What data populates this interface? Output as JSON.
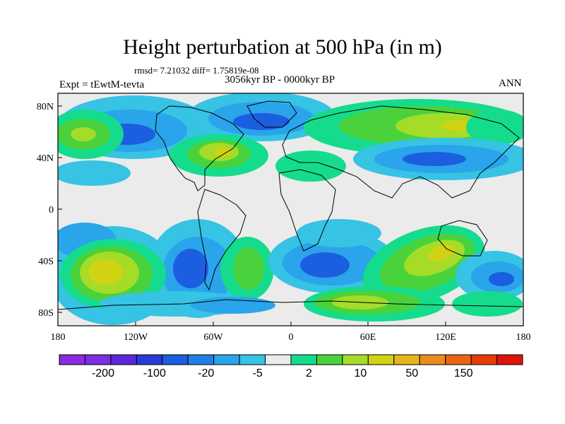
{
  "title": "Height perturbation at 500 hPa (in m)",
  "stats": "rmsd= 7.21032  diff= 1.75819e-08",
  "experiment": "Expt = tEwtM-tevta",
  "period": "3056kyr BP - 0000kyr BP",
  "season": "ANN",
  "lat_ticks": [
    "80N",
    "40N",
    "0",
    "40S",
    "80S"
  ],
  "lon_ticks": [
    "180",
    "120W",
    "60W",
    "0",
    "60E",
    "120E",
    "180"
  ],
  "colorbar": {
    "colors": [
      "#8a2be2",
      "#7a2fe0",
      "#5a28d8",
      "#2a3ad6",
      "#1c5ee0",
      "#1e7fe6",
      "#2aa4ea",
      "#36c3e4",
      "#ebebeb",
      "#14dc8c",
      "#4ad23c",
      "#a4dc28",
      "#d2d214",
      "#e6b41e",
      "#eb8c1e",
      "#eb6414",
      "#e63c0a",
      "#dc140a"
    ],
    "labels": [
      "-200",
      "-100",
      "-20",
      "-5",
      "2",
      "10",
      "50",
      "150"
    ]
  },
  "colors": {
    "neutral": "#ebebeb",
    "neg_light": "#36c3e4",
    "neg_mid": "#2aa4ea",
    "neg_dark": "#1c5ee0",
    "pos_light": "#14dc8c",
    "pos_mid": "#4ad23c",
    "pos_yellow": "#a4dc28",
    "pos_gold": "#d2d214",
    "pos_orange": "#e6b41e"
  }
}
